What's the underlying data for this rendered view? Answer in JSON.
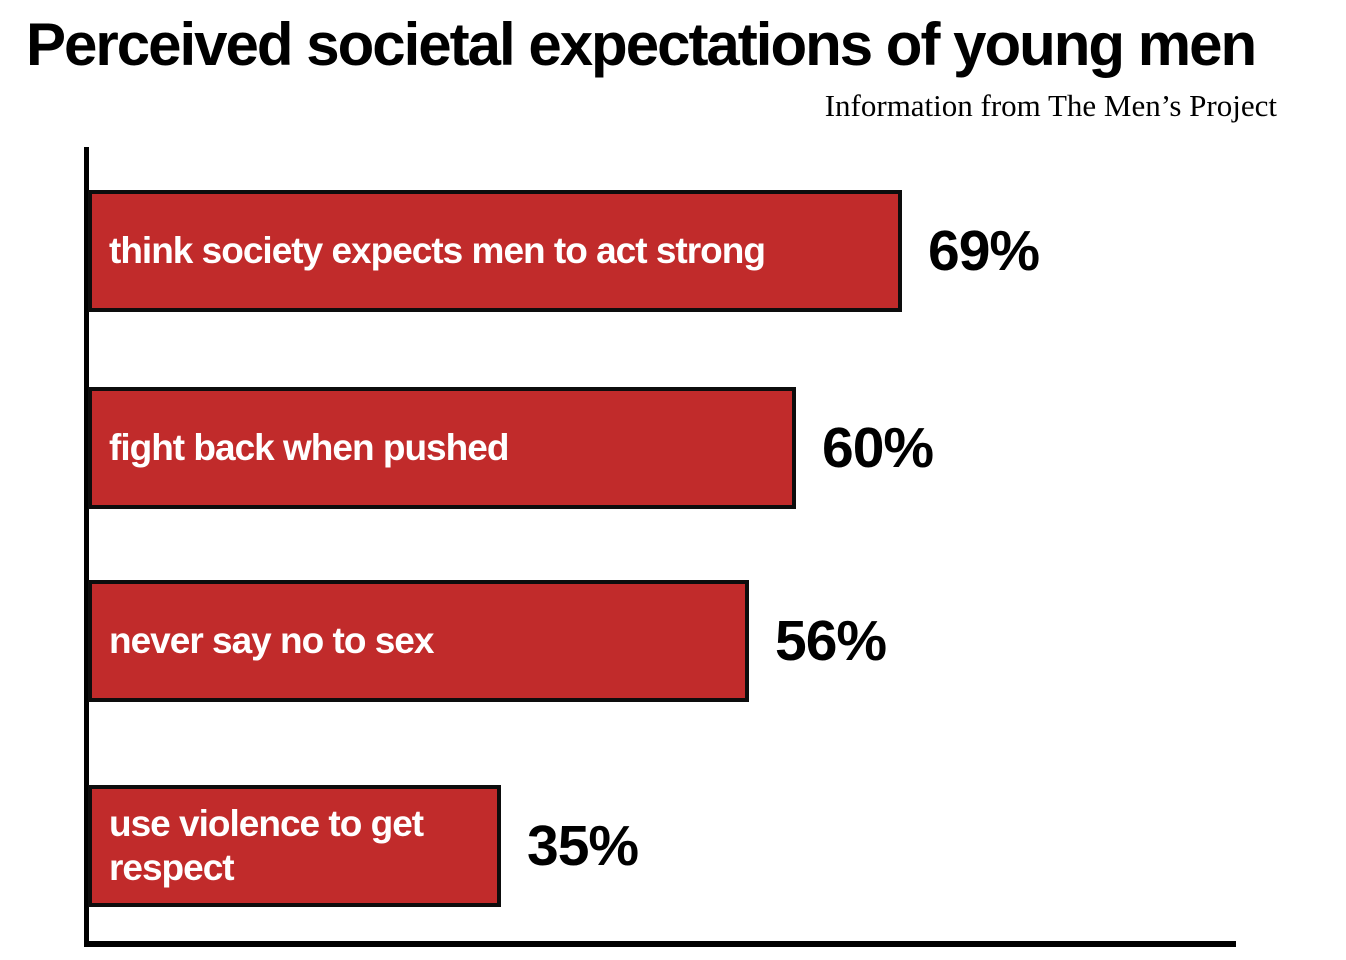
{
  "header": {
    "title": "Perceived societal expectations of young men",
    "subtitle": "Information from The Men’s Project"
  },
  "chart_data": {
    "type": "bar",
    "orientation": "horizontal",
    "title": "Perceived societal expectations of young men",
    "subtitle": "Information from The Men’s Project",
    "categories": [
      "think society expects men to act strong",
      "fight back when pushed",
      "never say no to sex",
      "use violence to get respect"
    ],
    "values": [
      69,
      60,
      56,
      35
    ],
    "value_labels": [
      "69%",
      "60%",
      "56%",
      "35%"
    ],
    "unit": "percent",
    "xlabel": "",
    "ylabel": "",
    "xlim": [
      0,
      100
    ],
    "grid": false,
    "legend": false,
    "bar_color": "#c12b2b",
    "bar_border_color": "#0d0d0d",
    "bar_label_color": "#ffffff",
    "value_label_color": "#000000",
    "axis_color": "#000000"
  }
}
